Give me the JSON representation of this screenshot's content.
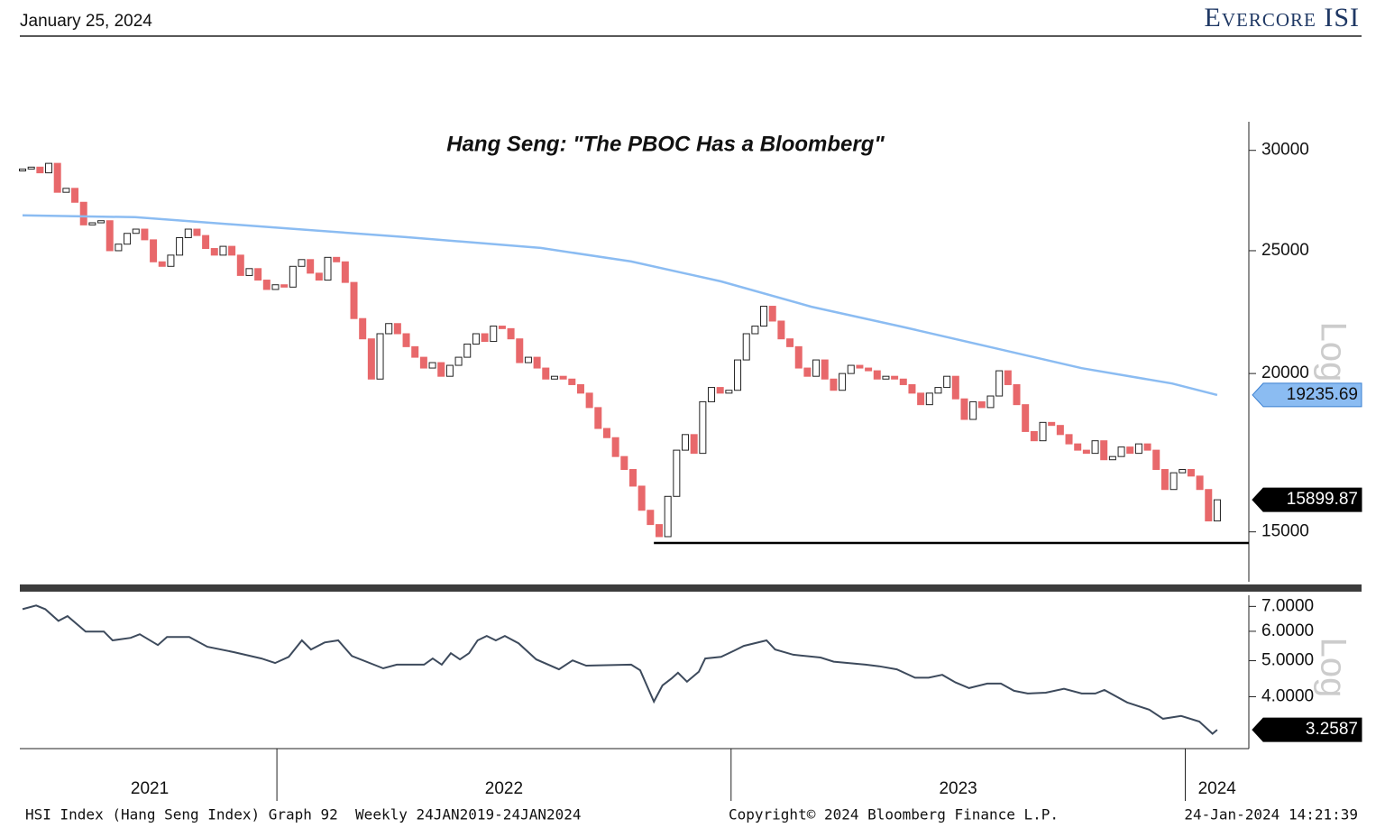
{
  "header": {
    "date": "January 25, 2024",
    "brand": "Evercore ISI"
  },
  "chart_data": [
    {
      "type": "candlestick",
      "title": "Hang Seng: \"The PBOC Has a Bloomberg\"",
      "log_scale": true,
      "log_label": "Log",
      "up_color": "#ffffff",
      "down_color": "#e8686b",
      "xlim": [
        2021.434,
        2024.14
      ],
      "ylim": [
        13700,
        31600
      ],
      "yticks": [
        15000,
        20000,
        25000,
        30000
      ],
      "x": [
        2021.44,
        2021.4592,
        2021.4784,
        2021.4976,
        2021.5168,
        2021.536,
        2021.5552,
        2021.5744,
        2021.5936,
        2021.6128,
        2021.632,
        2021.6512,
        2021.6704,
        2021.6896,
        2021.7088,
        2021.728,
        2021.7472,
        2021.7664,
        2021.7856,
        2021.8048,
        2021.824,
        2021.8432,
        2021.8624,
        2021.8816,
        2021.9008,
        2021.92,
        2021.9392,
        2021.9584,
        2021.9776,
        2021.9968,
        2022.016,
        2022.0352,
        2022.0544,
        2022.0736,
        2022.0928,
        2022.112,
        2022.1312,
        2022.1504,
        2022.1696,
        2022.1888,
        2022.208,
        2022.2272,
        2022.2464,
        2022.2656,
        2022.2848,
        2022.304,
        2022.3232,
        2022.3424,
        2022.3616,
        2022.3808,
        2022.4,
        2022.4192,
        2022.4384,
        2022.4576,
        2022.4768,
        2022.496,
        2022.5152,
        2022.5344,
        2022.5536,
        2022.5728,
        2022.592,
        2022.6112,
        2022.6304,
        2022.6496,
        2022.6688,
        2022.688,
        2022.7072,
        2022.7264,
        2022.7456,
        2022.7648,
        2022.784,
        2022.8032,
        2022.8224,
        2022.8416,
        2022.8608,
        2022.88,
        2022.8992,
        2022.9184,
        2022.9376,
        2022.9568,
        2022.976,
        2022.9952,
        2023.0144,
        2023.0336,
        2023.0528,
        2023.072,
        2023.0912,
        2023.1104,
        2023.1296,
        2023.1488,
        2023.168,
        2023.1872,
        2023.2064,
        2023.2256,
        2023.2448,
        2023.264,
        2023.2832,
        2023.3024,
        2023.3216,
        2023.3408,
        2023.36,
        2023.3792,
        2023.3984,
        2023.4176,
        2023.4368,
        2023.456,
        2023.4752,
        2023.4944,
        2023.5136,
        2023.5328,
        2023.552,
        2023.5712,
        2023.5904,
        2023.6096,
        2023.6288,
        2023.648,
        2023.6672,
        2023.6864,
        2023.7056,
        2023.7248,
        2023.744,
        2023.7632,
        2023.7824,
        2023.8016,
        2023.8208,
        2023.84,
        2023.8592,
        2023.8784,
        2023.8976,
        2023.9168,
        2023.936,
        2023.9552,
        2023.9744,
        2023.9936,
        2024.0128,
        2024.032,
        2024.0512,
        2024.0704
      ],
      "open": [
        28900,
        29000,
        29100,
        28800,
        29300,
        27800,
        28000,
        27300,
        26200,
        26300,
        26400,
        25000,
        25300,
        25800,
        26000,
        25500,
        24500,
        24300,
        24800,
        25600,
        26000,
        25700,
        25100,
        24800,
        25200,
        24800,
        23900,
        24200,
        23700,
        23300,
        23500,
        23400,
        24300,
        24600,
        24000,
        23700,
        24700,
        24500,
        23600,
        22100,
        21300,
        19800,
        21500,
        21900,
        21500,
        21000,
        20600,
        20200,
        20400,
        19900,
        20300,
        20600,
        21100,
        21500,
        21200,
        21800,
        21700,
        21300,
        20400,
        20600,
        20200,
        19800,
        19900,
        19800,
        19600,
        19300,
        18800,
        18100,
        17800,
        17200,
        16800,
        16300,
        15600,
        15200,
        14870,
        16000,
        17400,
        17900,
        17300,
        19000,
        19500,
        19300,
        19400,
        20500,
        21500,
        21800,
        22600,
        22000,
        21300,
        21000,
        20200,
        19900,
        20500,
        19800,
        19400,
        20000,
        20300,
        20200,
        20100,
        19800,
        19900,
        19800,
        19600,
        19300,
        18900,
        19300,
        19500,
        19900,
        19100,
        18400,
        19000,
        18800,
        19200,
        20100,
        19600,
        18900,
        18000,
        17700,
        18300,
        18200,
        17900,
        17600,
        17400,
        17300,
        17700,
        17100,
        17200,
        17500,
        17300,
        17600,
        17400,
        16800,
        16200,
        16700,
        16800,
        16600,
        16200,
        15300
      ],
      "close": [
        29000,
        29100,
        28800,
        29300,
        27800,
        28000,
        27300,
        26200,
        26300,
        26400,
        25000,
        25300,
        25800,
        26000,
        25500,
        24500,
        24300,
        24800,
        25600,
        26000,
        25700,
        25100,
        24800,
        25200,
        24800,
        23900,
        24200,
        23700,
        23300,
        23500,
        23400,
        24300,
        24600,
        24000,
        23700,
        24700,
        24500,
        23600,
        22100,
        21300,
        19800,
        21500,
        21900,
        21500,
        21000,
        20600,
        20200,
        20400,
        19900,
        20300,
        20600,
        21100,
        21500,
        21200,
        21800,
        21700,
        21300,
        20400,
        20600,
        20200,
        19800,
        19900,
        19800,
        19600,
        19300,
        18800,
        18100,
        17800,
        17200,
        16800,
        16300,
        15600,
        15200,
        14870,
        16000,
        17400,
        17900,
        17300,
        19000,
        19500,
        19300,
        19400,
        20500,
        21500,
        21800,
        22600,
        22000,
        21300,
        21000,
        20200,
        19900,
        20500,
        19800,
        19400,
        20000,
        20300,
        20200,
        20100,
        19800,
        19900,
        19800,
        19600,
        19300,
        18900,
        19300,
        19500,
        19900,
        19100,
        18400,
        19000,
        18800,
        19200,
        20100,
        19600,
        18900,
        18000,
        17700,
        18300,
        18200,
        17900,
        17600,
        17400,
        17300,
        17700,
        17100,
        17200,
        17500,
        17300,
        17600,
        17400,
        16800,
        16200,
        16700,
        16800,
        16600,
        16200,
        15300,
        15899.87
      ],
      "line": {
        "color": "#8bbcf2",
        "x": [
          2021.44,
          2021.688,
          2021.986,
          2022.284,
          2022.581,
          2022.78,
          2022.978,
          2023.177,
          2023.375,
          2023.574,
          2023.772,
          2023.971,
          2024.0704
        ],
        "values": [
          26655,
          26568,
          26092,
          25626,
          25126,
          24514,
          23645,
          22580,
          21780,
          20972,
          20196,
          19640,
          19235.69
        ]
      },
      "support_level": 14700,
      "support_from": 2022.83
    },
    {
      "type": "line",
      "log_scale": true,
      "log_label": "Log",
      "color": "#3d4a5c",
      "xlim": [
        2021.434,
        2024.14
      ],
      "ylim": [
        2.9,
        7.5
      ],
      "yticks": [
        {
          "value": 4,
          "label": "4.0000"
        },
        {
          "value": 5,
          "label": "5.0000"
        },
        {
          "value": 6,
          "label": "6.0000"
        },
        {
          "value": 7,
          "label": "7.0000"
        }
      ],
      "x": [
        2021.44,
        2021.47,
        2021.49,
        2021.519,
        2021.539,
        2021.579,
        2021.619,
        2021.638,
        2021.678,
        2021.698,
        2021.738,
        2021.758,
        2021.807,
        2021.847,
        2021.906,
        2021.966,
        2021.996,
        2022.026,
        2022.055,
        2022.075,
        2022.105,
        2022.135,
        2022.165,
        2022.234,
        2022.264,
        2022.324,
        2022.343,
        2022.363,
        2022.383,
        2022.403,
        2022.423,
        2022.442,
        2022.462,
        2022.482,
        2022.502,
        2022.532,
        2022.571,
        2022.621,
        2022.651,
        2022.681,
        2022.78,
        2022.8,
        2022.83,
        2022.849,
        2022.869,
        2022.883,
        2022.903,
        2022.929,
        2022.943,
        2022.978,
        2023.008,
        2023.028,
        2023.078,
        2023.097,
        2023.137,
        2023.197,
        2023.226,
        2023.296,
        2023.326,
        2023.365,
        2023.405,
        2023.435,
        2023.465,
        2023.494,
        2023.524,
        2023.564,
        2023.594,
        2023.623,
        2023.653,
        2023.693,
        2023.733,
        2023.772,
        2023.802,
        2023.822,
        2023.872,
        2023.921,
        2023.951,
        2023.991,
        2024.031,
        2024.06,
        2024.0704
      ],
      "values": [
        6.88,
        7.04,
        6.88,
        6.4,
        6.59,
        5.99,
        5.99,
        5.67,
        5.76,
        5.89,
        5.51,
        5.79,
        5.79,
        5.45,
        5.27,
        5.07,
        4.93,
        5.12,
        5.67,
        5.36,
        5.6,
        5.67,
        5.15,
        4.77,
        4.88,
        4.88,
        5.07,
        4.88,
        5.24,
        5.04,
        5.24,
        5.67,
        5.83,
        5.67,
        5.83,
        5.57,
        5.04,
        4.74,
        5.01,
        4.85,
        4.88,
        4.71,
        3.88,
        4.29,
        4.48,
        4.64,
        4.39,
        4.67,
        5.07,
        5.12,
        5.33,
        5.48,
        5.67,
        5.36,
        5.19,
        5.1,
        4.97,
        4.88,
        4.83,
        4.74,
        4.5,
        4.5,
        4.58,
        4.37,
        4.22,
        4.34,
        4.34,
        4.15,
        4.08,
        4.1,
        4.2,
        4.08,
        4.08,
        4.17,
        3.86,
        3.69,
        3.49,
        3.55,
        3.43,
        3.18,
        3.2587
      ],
      "xticks": [
        2022,
        2023,
        2024
      ],
      "year_labels": [
        {
          "value": 2021.72,
          "label": "2021"
        },
        {
          "value": 2022.5,
          "label": "2022"
        },
        {
          "value": 2023.5,
          "label": "2023"
        },
        {
          "value": 2024.07,
          "label": "2024"
        }
      ]
    }
  ],
  "footer": {
    "source": "HSI Index (Hang Seng Index) Graph 92  Weekly 24JAN2019-24JAN2024",
    "copyright": "Copyright© 2024 Bloomberg Finance L.P.",
    "timestamp": "24-Jan-2024 14:21:39"
  }
}
